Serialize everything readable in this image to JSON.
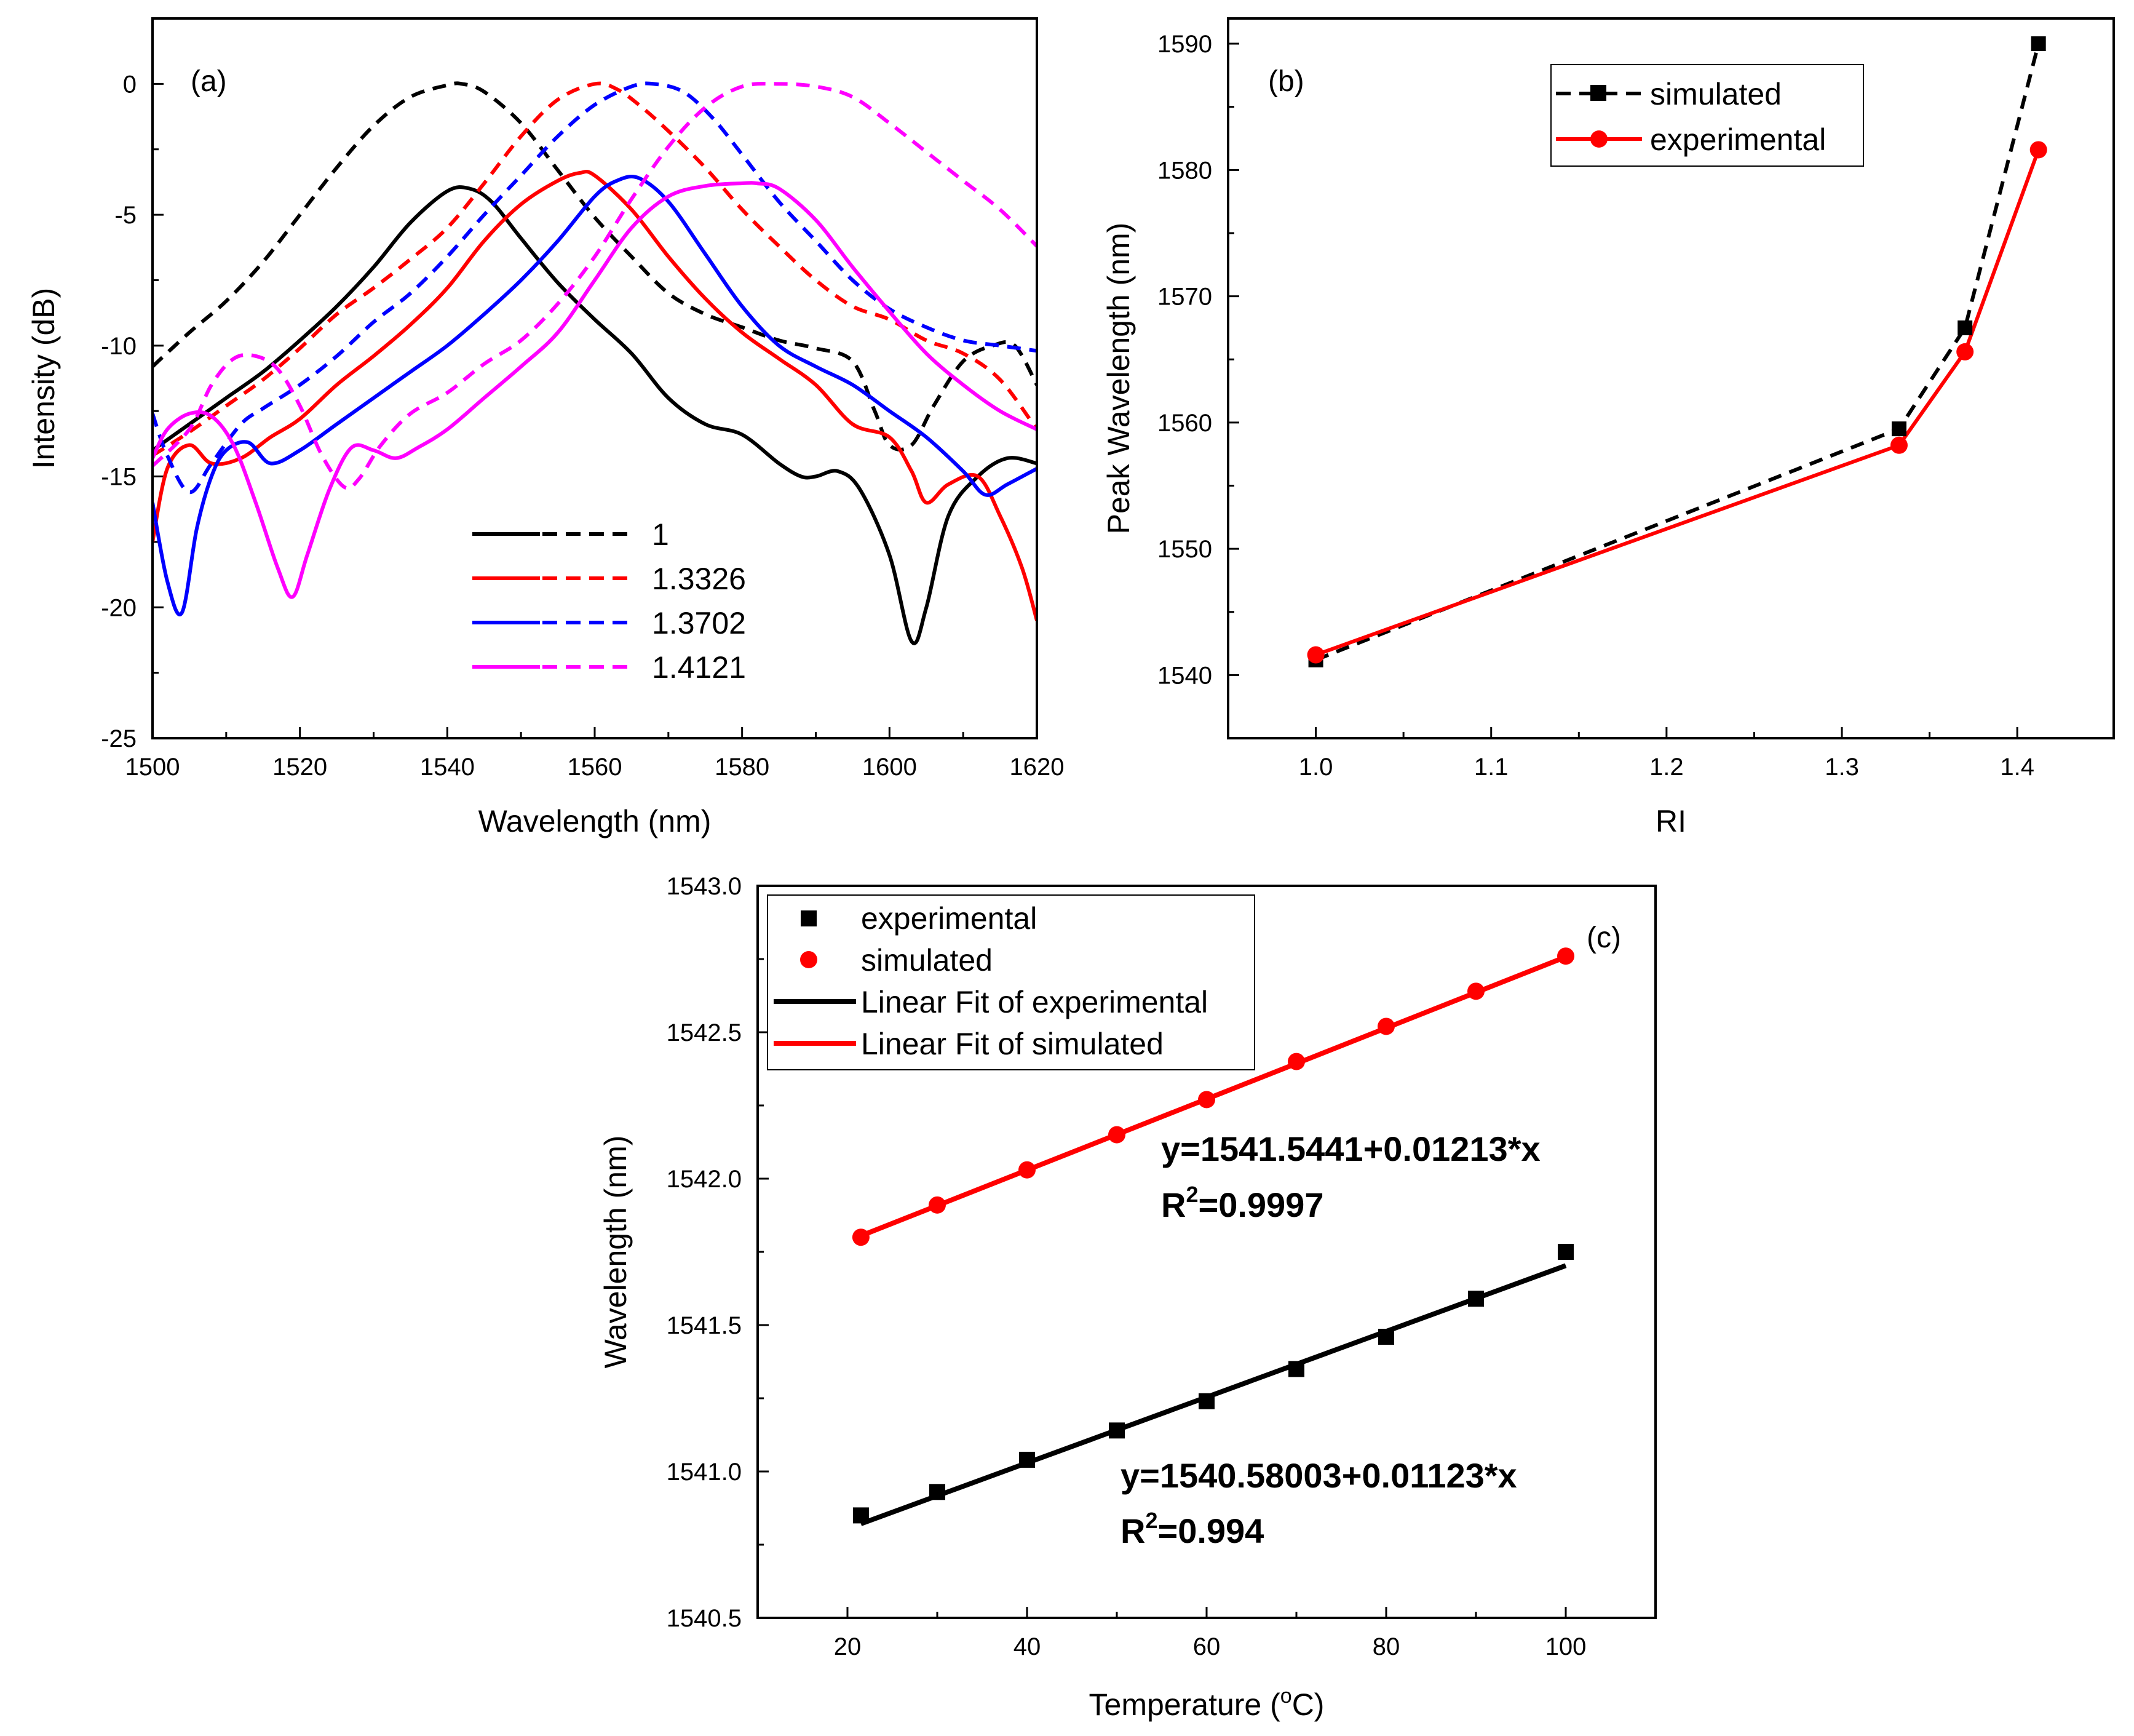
{
  "chart_data": [
    {
      "id": "a",
      "type": "line",
      "panel_label": "(a)",
      "xlabel": "Wavelength (nm)",
      "ylabel": "Intensity (dB)",
      "xlim": [
        1500,
        1620
      ],
      "ylim": [
        -25,
        2.5
      ],
      "xticks": [
        1500,
        1520,
        1540,
        1560,
        1580,
        1600,
        1620
      ],
      "yticks": [
        -25,
        -20,
        -15,
        -10,
        -5,
        0
      ],
      "legend": {
        "placement": "lower-center",
        "labels": [
          "1",
          "1.3326",
          "1.3702",
          "1.4121"
        ]
      },
      "series": [
        {
          "name": "1",
          "style": "solid",
          "color": "#000000",
          "x": [
            1500,
            1505,
            1510,
            1515,
            1520,
            1525,
            1530,
            1535,
            1540,
            1543,
            1546,
            1550,
            1555,
            1560,
            1565,
            1570,
            1575,
            1580,
            1585,
            1588,
            1590,
            1593,
            1596,
            1600,
            1603,
            1605,
            1608,
            1612,
            1616,
            1620
          ],
          "y": [
            -14,
            -13,
            -12,
            -11,
            -9.8,
            -8.5,
            -7,
            -5.3,
            -4.1,
            -4,
            -4.5,
            -5.9,
            -7.6,
            -9,
            -10.3,
            -12,
            -13,
            -13.4,
            -14.5,
            -15,
            -15,
            -14.8,
            -15.5,
            -18,
            -21.3,
            -20,
            -16.5,
            -15,
            -14.3,
            -14.5
          ]
        },
        {
          "name": "1",
          "style": "dashed",
          "color": "#000000",
          "x": [
            1500,
            1505,
            1510,
            1515,
            1520,
            1525,
            1530,
            1535,
            1540,
            1542,
            1545,
            1550,
            1555,
            1560,
            1565,
            1570,
            1575,
            1580,
            1585,
            1590,
            1595,
            1598,
            1600,
            1603,
            1606,
            1610,
            1614,
            1617,
            1620
          ],
          "y": [
            -10.8,
            -9.5,
            -8.3,
            -6.8,
            -5,
            -3.2,
            -1.6,
            -0.5,
            -0.05,
            0,
            -0.3,
            -1.5,
            -3.3,
            -5.1,
            -6.6,
            -8,
            -8.8,
            -9.3,
            -9.8,
            -10.1,
            -10.6,
            -12.5,
            -13.8,
            -13.8,
            -12.3,
            -10.6,
            -10,
            -10,
            -11.5
          ]
        },
        {
          "name": "1.3326",
          "style": "solid",
          "color": "#ff0000",
          "x": [
            1500,
            1502,
            1505,
            1508,
            1512,
            1516,
            1520,
            1525,
            1530,
            1535,
            1540,
            1545,
            1550,
            1555,
            1558,
            1560,
            1565,
            1570,
            1575,
            1580,
            1585,
            1590,
            1595,
            1600,
            1603,
            1605,
            1608,
            1612,
            1615,
            1618,
            1620
          ],
          "y": [
            -17.5,
            -14.7,
            -13.8,
            -14.5,
            -14.3,
            -13.5,
            -12.8,
            -11.5,
            -10.4,
            -9.2,
            -7.8,
            -6,
            -4.6,
            -3.7,
            -3.4,
            -3.5,
            -4.8,
            -6.6,
            -8.2,
            -9.5,
            -10.5,
            -11.5,
            -13,
            -13.5,
            -14.8,
            -16,
            -15.3,
            -15,
            -16.5,
            -18.5,
            -20.5
          ]
        },
        {
          "name": "1.3326",
          "style": "dashed",
          "color": "#ff0000",
          "x": [
            1500,
            1505,
            1510,
            1515,
            1520,
            1525,
            1530,
            1535,
            1540,
            1545,
            1550,
            1555,
            1560,
            1563,
            1566,
            1570,
            1575,
            1580,
            1585,
            1590,
            1595,
            1600,
            1605,
            1610,
            1615,
            1620
          ],
          "y": [
            -14.2,
            -13.3,
            -12.3,
            -11.3,
            -10.1,
            -8.8,
            -7.8,
            -6.7,
            -5.5,
            -3.8,
            -2,
            -0.6,
            0,
            -0.2,
            -0.8,
            -1.8,
            -3.2,
            -4.8,
            -6.2,
            -7.5,
            -8.5,
            -9,
            -9.8,
            -10.3,
            -11.3,
            -13.2
          ]
        },
        {
          "name": "1.3702",
          "style": "solid",
          "color": "#0000ff",
          "x": [
            1500,
            1502,
            1504,
            1506,
            1508,
            1510,
            1513,
            1516,
            1520,
            1525,
            1530,
            1535,
            1540,
            1545,
            1550,
            1555,
            1560,
            1563,
            1566,
            1570,
            1575,
            1580,
            1585,
            1590,
            1595,
            1600,
            1605,
            1610,
            1613,
            1616,
            1620
          ],
          "y": [
            -16,
            -19,
            -20.2,
            -17,
            -15,
            -14,
            -13.7,
            -14.5,
            -14,
            -13,
            -12,
            -11,
            -10,
            -8.8,
            -7.5,
            -6,
            -4.3,
            -3.7,
            -3.6,
            -4.5,
            -6.5,
            -8.5,
            -10,
            -10.8,
            -11.5,
            -12.5,
            -13.5,
            -14.8,
            -15.7,
            -15.3,
            -14.7
          ]
        },
        {
          "name": "1.3702",
          "style": "dashed",
          "color": "#0000ff",
          "x": [
            1500,
            1502,
            1505,
            1508,
            1512,
            1515,
            1520,
            1525,
            1530,
            1535,
            1540,
            1545,
            1550,
            1555,
            1560,
            1565,
            1568,
            1572,
            1576,
            1580,
            1585,
            1590,
            1595,
            1600,
            1605,
            1610,
            1615,
            1620
          ],
          "y": [
            -12.6,
            -14.2,
            -15.6,
            -14.5,
            -13,
            -12.4,
            -11.5,
            -10.4,
            -9.1,
            -8,
            -6.6,
            -5,
            -3.5,
            -2,
            -0.8,
            -0.1,
            0,
            -0.3,
            -1.3,
            -2.7,
            -4.5,
            -6,
            -7.5,
            -8.6,
            -9.3,
            -9.8,
            -10,
            -10.2
          ]
        },
        {
          "name": "1.4121",
          "style": "solid",
          "color": "#ff00ff",
          "x": [
            1500,
            1502,
            1505,
            1508,
            1511,
            1514,
            1517,
            1519,
            1521,
            1524,
            1527,
            1530,
            1533,
            1536,
            1540,
            1545,
            1550,
            1555,
            1560,
            1565,
            1570,
            1575,
            1580,
            1582,
            1585,
            1590,
            1595,
            1600,
            1605,
            1610,
            1615,
            1620
          ],
          "y": [
            -14.3,
            -13.2,
            -12.6,
            -12.7,
            -13.8,
            -16,
            -18.5,
            -19.6,
            -18,
            -15.5,
            -13.9,
            -14,
            -14.3,
            -13.9,
            -13.2,
            -12,
            -10.8,
            -9.5,
            -7.5,
            -5.5,
            -4.3,
            -3.9,
            -3.8,
            -3.8,
            -4,
            -5.2,
            -7,
            -8.7,
            -10.3,
            -11.5,
            -12.5,
            -13.2
          ]
        },
        {
          "name": "1.4121",
          "style": "dashed",
          "color": "#ff00ff",
          "x": [
            1500,
            1505,
            1508,
            1511,
            1514,
            1517,
            1520,
            1523,
            1526,
            1528,
            1531,
            1535,
            1540,
            1545,
            1550,
            1555,
            1560,
            1565,
            1570,
            1575,
            1580,
            1585,
            1590,
            1595,
            1600,
            1605,
            1610,
            1615,
            1620
          ],
          "y": [
            -14.6,
            -13.2,
            -11.5,
            -10.5,
            -10.4,
            -10.9,
            -12.3,
            -14.2,
            -15.4,
            -15.1,
            -13.8,
            -12.6,
            -11.8,
            -10.7,
            -9.8,
            -8.4,
            -6.6,
            -4.4,
            -2.4,
            -0.9,
            -0.1,
            0,
            -0.1,
            -0.5,
            -1.5,
            -2.6,
            -3.7,
            -4.8,
            -6.2
          ]
        }
      ]
    },
    {
      "id": "b",
      "type": "line",
      "panel_label": "(b)",
      "xlabel": "RI",
      "ylabel": "Peak Wavelength (nm)",
      "xlim": [
        0.95,
        1.455
      ],
      "ylim": [
        1535,
        1592
      ],
      "xticks": [
        1.0,
        1.1,
        1.2,
        1.3,
        1.4
      ],
      "xtick_labels": [
        "1.0",
        "1.1",
        "1.2",
        "1.3",
        "1.4"
      ],
      "yticks": [
        1540,
        1550,
        1560,
        1570,
        1580,
        1590
      ],
      "legend": {
        "placement": "top",
        "labels": [
          "simulated",
          "experimental"
        ]
      },
      "series": [
        {
          "name": "simulated",
          "style": "dashed",
          "marker": "square",
          "color": "#000000",
          "x": [
            1.0,
            1.3326,
            1.3702,
            1.4121
          ],
          "y": [
            1541.2,
            1559.5,
            1567.5,
            1590
          ]
        },
        {
          "name": "experimental",
          "style": "solid",
          "marker": "circle",
          "color": "#ff0000",
          "x": [
            1.0,
            1.3326,
            1.3702,
            1.4121
          ],
          "y": [
            1541.6,
            1558.2,
            1565.6,
            1581.6
          ]
        }
      ]
    },
    {
      "id": "c",
      "type": "scatter",
      "panel_label": "(c)",
      "xlabel_main": "Temperature (",
      "xlabel_sup": "o",
      "xlabel_end": "C)",
      "ylabel": "Wavelength (nm)",
      "xlim": [
        10,
        110
      ],
      "ylim": [
        1540.5,
        1543.0
      ],
      "xticks": [
        20,
        40,
        60,
        80,
        100
      ],
      "yticks": [
        1540.5,
        1541.0,
        1541.5,
        1542.0,
        1542.5,
        1543.0
      ],
      "ytick_labels": [
        "1540.5",
        "1541.0",
        "1541.5",
        "1542.0",
        "1542.5",
        "1543.0"
      ],
      "legend": {
        "placement": "top-left",
        "labels": [
          "experimental",
          "simulated",
          "Linear Fit of experimental",
          "Linear Fit of simulated"
        ]
      },
      "series": [
        {
          "name": "experimental",
          "marker": "square",
          "color": "#000000",
          "x": [
            21.5,
            30,
            40,
            50,
            60,
            70,
            80,
            90,
            100
          ],
          "y": [
            1540.85,
            1540.93,
            1541.04,
            1541.14,
            1541.24,
            1541.35,
            1541.46,
            1541.59,
            1541.75
          ]
        },
        {
          "name": "simulated",
          "marker": "circle",
          "color": "#ff0000",
          "x": [
            21.5,
            30,
            40,
            50,
            60,
            70,
            80,
            90,
            100
          ],
          "y": [
            1541.8,
            1541.91,
            1542.03,
            1542.15,
            1542.27,
            1542.4,
            1542.52,
            1542.64,
            1542.76
          ]
        }
      ],
      "fits": [
        {
          "name": "Linear Fit of experimental",
          "color": "#000000",
          "intercept": 1540.58003,
          "slope": 0.01123,
          "x_range": [
            21.5,
            100
          ]
        },
        {
          "name": "Linear Fit of simulated",
          "color": "#ff0000",
          "intercept": 1541.5441,
          "slope": 0.01213,
          "x_range": [
            21.5,
            100
          ]
        }
      ],
      "annotations": {
        "fit_experimental": {
          "equation": "y=1540.58003+0.01123*x",
          "r2_prefix": "R",
          "r2_sup": "2",
          "r2_value": "=0.994"
        },
        "fit_simulated": {
          "equation": "y=1541.5441+0.01213*x",
          "r2_prefix": "R",
          "r2_sup": "2",
          "r2_value": "=0.9997"
        }
      }
    }
  ]
}
